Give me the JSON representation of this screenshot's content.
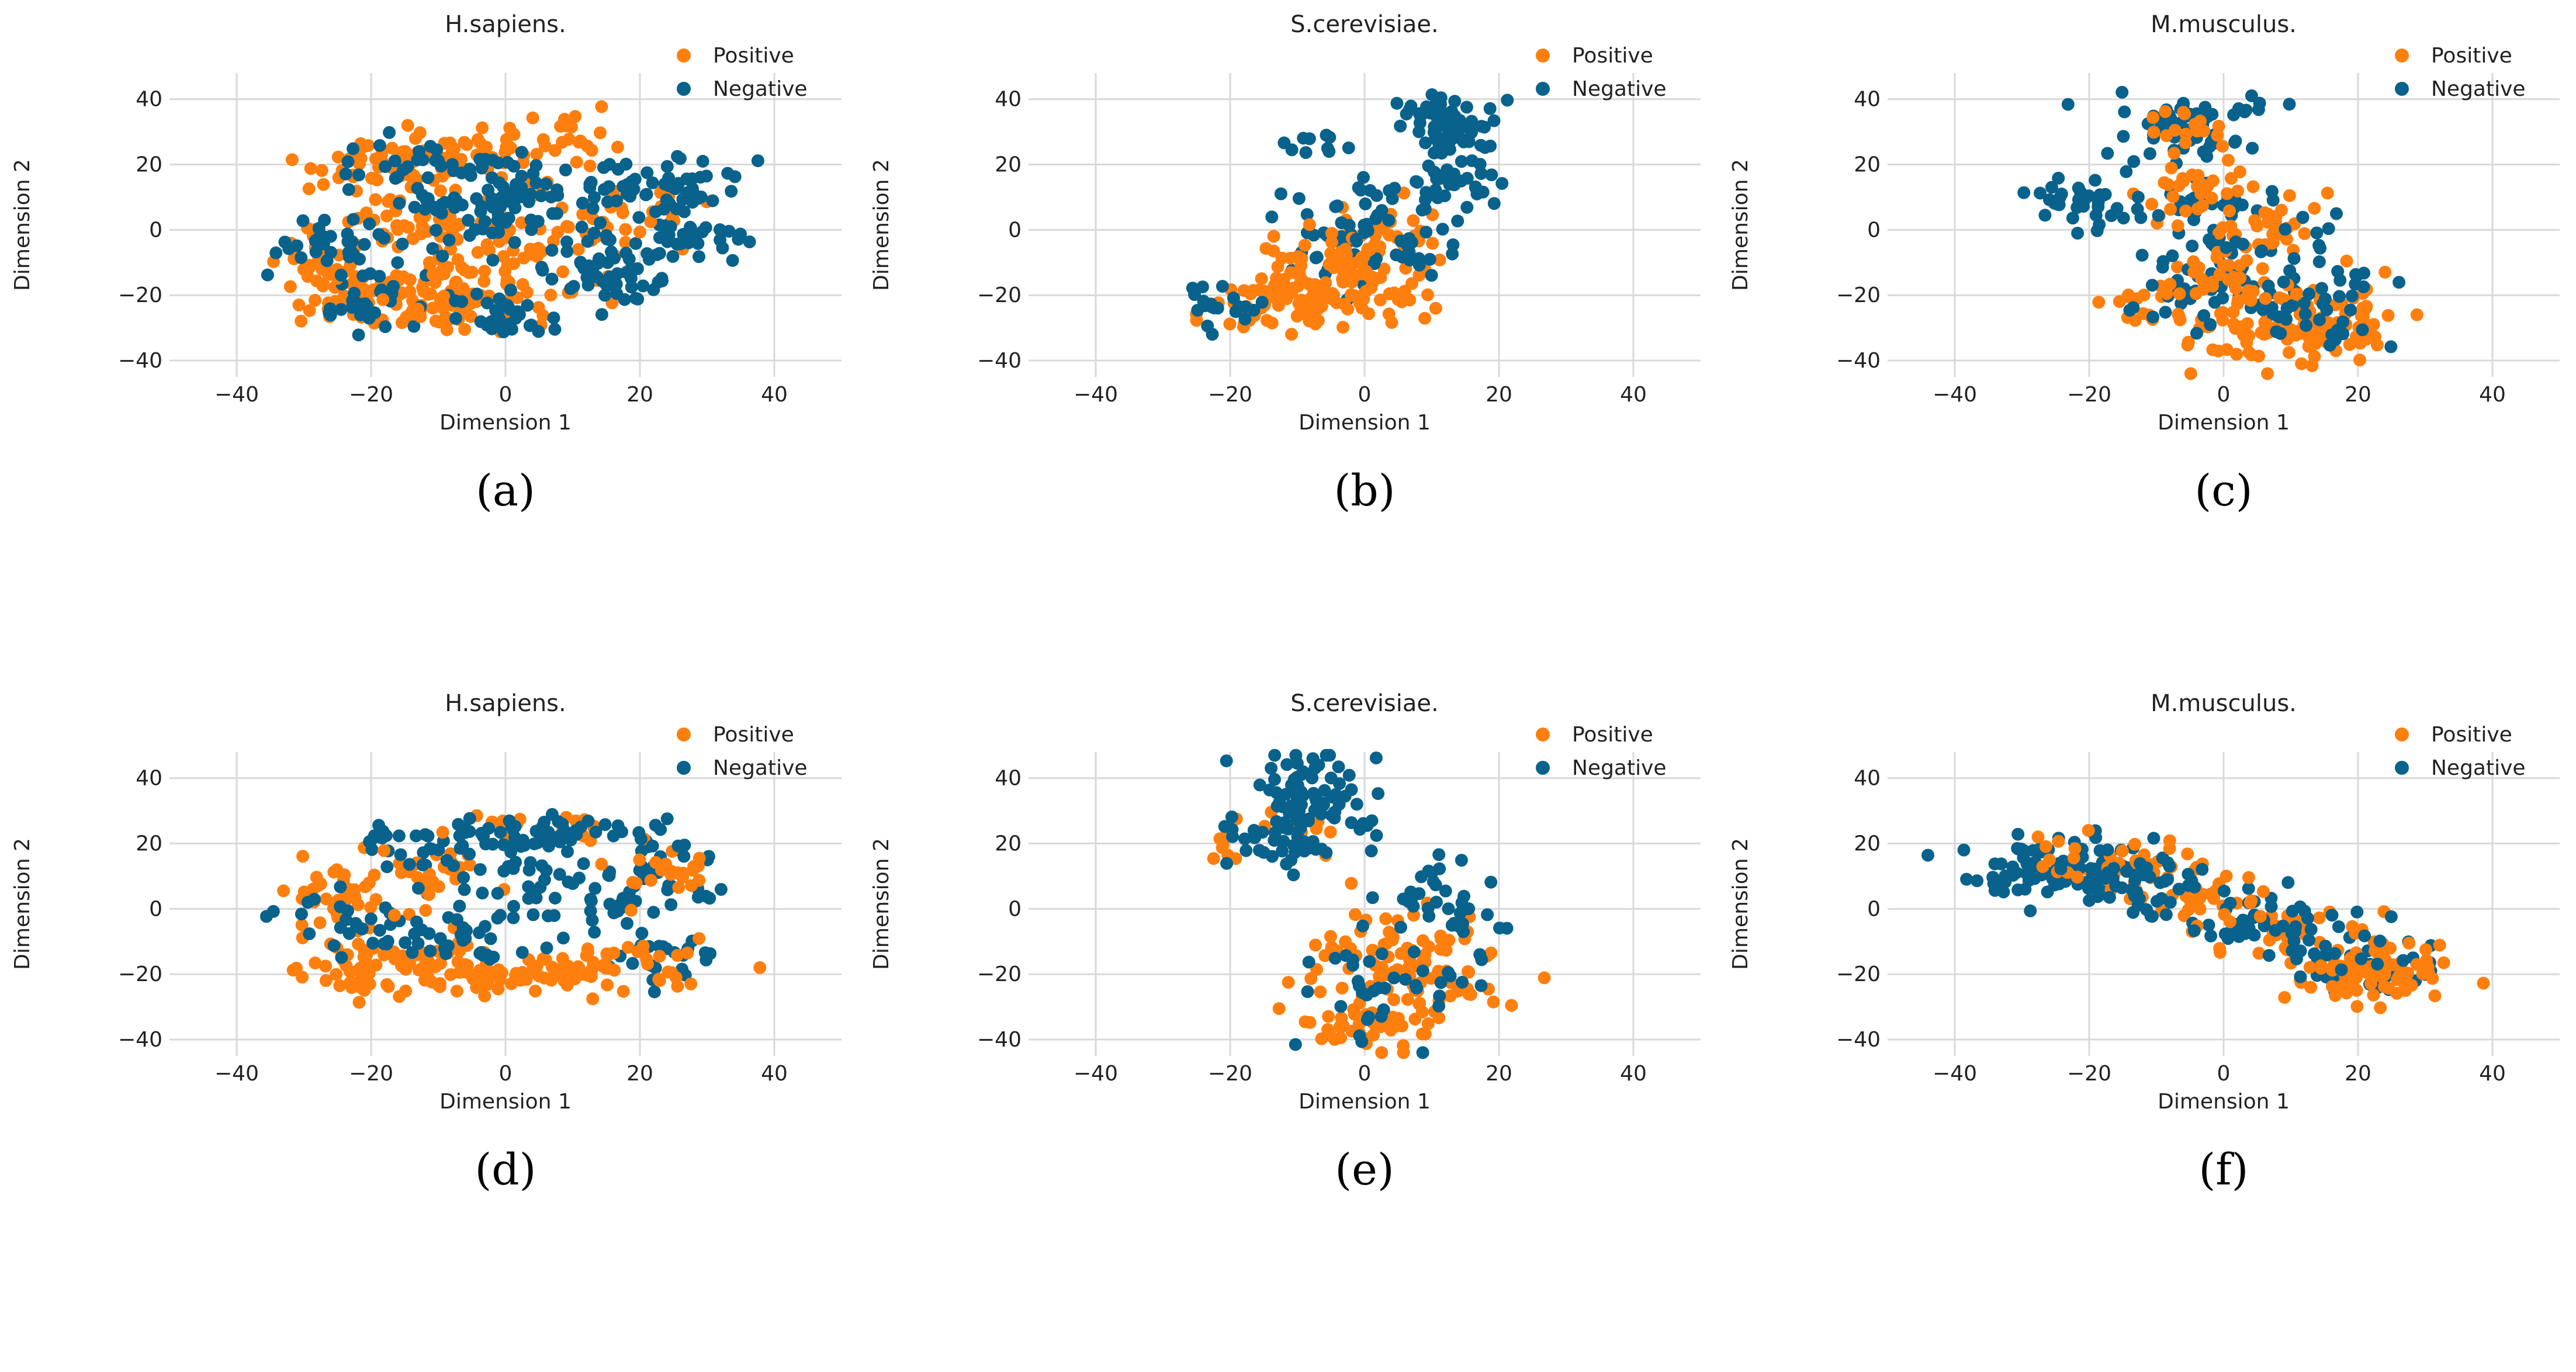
{
  "style": {
    "positive_color": "#ff7f0e",
    "negative_color": "#08628c",
    "grid_color": "#d9d9d9",
    "background": "#ffffff",
    "grid": true,
    "legend_placement": "top-right"
  },
  "legend": {
    "positive": "Positive",
    "negative": "Negative"
  },
  "chart_data": [
    {
      "type": "scatter",
      "panel_label": "(a)",
      "title": "H.sapiens.",
      "xlabel": "Dimension 1",
      "ylabel": "Dimension 2",
      "xlim": [
        -50,
        50
      ],
      "ylim": [
        -45,
        48
      ],
      "xticks": [
        -40,
        -20,
        0,
        20,
        40
      ],
      "yticks": [
        -40,
        -20,
        0,
        20,
        40
      ],
      "xtick_labels": [
        "−40",
        "−20",
        "0",
        "20",
        "40"
      ],
      "ytick_labels": [
        "−40",
        "−20",
        "0",
        "20",
        "40"
      ],
      "series": [
        {
          "name": "Positive",
          "clusters": [
            {
              "cx": -18,
              "cy": 20,
              "sx": 6,
              "sy": 4,
              "n": 60
            },
            {
              "cx": -5,
              "cy": 22,
              "sx": 6,
              "sy": 4,
              "n": 40
            },
            {
              "cx": 10,
              "cy": 28,
              "sx": 4,
              "sy": 4,
              "n": 25
            },
            {
              "cx": -20,
              "cy": -20,
              "sx": 6,
              "sy": 5,
              "n": 70
            },
            {
              "cx": -8,
              "cy": -22,
              "sx": 5,
              "sy": 5,
              "n": 50
            },
            {
              "cx": 2,
              "cy": -10,
              "sx": 8,
              "sy": 8,
              "n": 60
            },
            {
              "cx": -12,
              "cy": 3,
              "sx": 6,
              "sy": 5,
              "n": 40
            },
            {
              "cx": -28,
              "cy": -8,
              "sx": 3,
              "sy": 5,
              "n": 25
            },
            {
              "cx": 15,
              "cy": 5,
              "sx": 6,
              "sy": 5,
              "n": 35
            }
          ]
        },
        {
          "name": "Negative",
          "clusters": [
            {
              "cx": 25,
              "cy": 14,
              "sx": 5,
              "sy": 5,
              "n": 50
            },
            {
              "cx": 15,
              "cy": -12,
              "sx": 6,
              "sy": 6,
              "n": 55
            },
            {
              "cx": 27,
              "cy": -2,
              "sx": 4,
              "sy": 4,
              "n": 30
            },
            {
              "cx": 5,
              "cy": 8,
              "sx": 7,
              "sy": 6,
              "n": 50
            },
            {
              "cx": -5,
              "cy": 5,
              "sx": 6,
              "sy": 6,
              "n": 40
            },
            {
              "cx": -25,
              "cy": -5,
              "sx": 5,
              "sy": 5,
              "n": 35
            },
            {
              "cx": -20,
              "cy": -22,
              "sx": 5,
              "sy": 4,
              "n": 30
            },
            {
              "cx": 0,
              "cy": -25,
              "sx": 4,
              "sy": 4,
              "n": 30
            },
            {
              "cx": -15,
              "cy": 20,
              "sx": 5,
              "sy": 4,
              "n": 20
            },
            {
              "cx": -5,
              "cy": 20,
              "sx": 4,
              "sy": 3,
              "n": 15
            }
          ]
        }
      ]
    },
    {
      "type": "scatter",
      "panel_label": "(b)",
      "title": "S.cerevisiae.",
      "xlabel": "Dimension 1",
      "ylabel": "Dimension 2",
      "xlim": [
        -50,
        50
      ],
      "ylim": [
        -45,
        48
      ],
      "xticks": [
        -40,
        -20,
        0,
        20,
        40
      ],
      "yticks": [
        -40,
        -20,
        0,
        20,
        40
      ],
      "xtick_labels": [
        "−40",
        "−20",
        "0",
        "20",
        "40"
      ],
      "ytick_labels": [
        "−40",
        "−20",
        "0",
        "20",
        "40"
      ],
      "series": [
        {
          "name": "Positive",
          "clusters": [
            {
              "cx": -13,
              "cy": -23,
              "sx": 5,
              "sy": 4,
              "n": 65
            },
            {
              "cx": -3,
              "cy": -15,
              "sx": 4,
              "sy": 5,
              "n": 50
            },
            {
              "cx": 3,
              "cy": -5,
              "sx": 4,
              "sy": 6,
              "n": 45
            },
            {
              "cx": -8,
              "cy": -10,
              "sx": 4,
              "sy": 5,
              "n": 25
            },
            {
              "cx": 6,
              "cy": -20,
              "sx": 3,
              "sy": 3,
              "n": 15
            }
          ]
        },
        {
          "name": "Negative",
          "clusters": [
            {
              "cx": 12,
              "cy": 32,
              "sx": 4,
              "sy": 5,
              "n": 55
            },
            {
              "cx": 14,
              "cy": 18,
              "sx": 4,
              "sy": 6,
              "n": 40
            },
            {
              "cx": -7,
              "cy": 27,
              "sx": 2,
              "sy": 2,
              "n": 10
            },
            {
              "cx": -20,
              "cy": -23,
              "sx": 3,
              "sy": 3,
              "n": 20
            },
            {
              "cx": 0,
              "cy": 5,
              "sx": 6,
              "sy": 6,
              "n": 40
            },
            {
              "cx": -5,
              "cy": -15,
              "sx": 5,
              "sy": 5,
              "n": 20
            },
            {
              "cx": 8,
              "cy": -8,
              "sx": 3,
              "sy": 4,
              "n": 15
            }
          ]
        }
      ]
    },
    {
      "type": "scatter",
      "panel_label": "(c)",
      "title": "M.musculus.",
      "xlabel": "Dimension 1",
      "ylabel": "Dimension 2",
      "xlim": [
        -50,
        50
      ],
      "ylim": [
        -45,
        48
      ],
      "xticks": [
        -40,
        -20,
        0,
        20,
        40
      ],
      "yticks": [
        -40,
        -20,
        0,
        20,
        40
      ],
      "xtick_labels": [
        "−40",
        "−20",
        "0",
        "20",
        "40"
      ],
      "ytick_labels": [
        "−40",
        "−20",
        "0",
        "20",
        "40"
      ],
      "series": [
        {
          "name": "Positive",
          "clusters": [
            {
              "cx": 10,
              "cy": -32,
              "sx": 7,
              "sy": 5,
              "n": 75
            },
            {
              "cx": 18,
              "cy": -25,
              "sx": 5,
              "sy": 6,
              "n": 35
            },
            {
              "cx": 3,
              "cy": -15,
              "sx": 6,
              "sy": 6,
              "n": 40
            },
            {
              "cx": 5,
              "cy": 0,
              "sx": 6,
              "sy": 7,
              "n": 40
            },
            {
              "cx": -12,
              "cy": -22,
              "sx": 4,
              "sy": 6,
              "n": 15
            },
            {
              "cx": -5,
              "cy": 15,
              "sx": 5,
              "sy": 6,
              "n": 25
            },
            {
              "cx": -5,
              "cy": 30,
              "sx": 4,
              "sy": 4,
              "n": 15
            }
          ]
        },
        {
          "name": "Negative",
          "clusters": [
            {
              "cx": -5,
              "cy": 30,
              "sx": 6,
              "sy": 6,
              "n": 60
            },
            {
              "cx": -22,
              "cy": 8,
              "sx": 4,
              "sy": 4,
              "n": 35
            },
            {
              "cx": -3,
              "cy": 10,
              "sx": 5,
              "sy": 6,
              "n": 35
            },
            {
              "cx": 0,
              "cy": -10,
              "sx": 5,
              "sy": 6,
              "n": 35
            },
            {
              "cx": 14,
              "cy": -15,
              "sx": 5,
              "sy": 8,
              "n": 30
            },
            {
              "cx": 5,
              "cy": -25,
              "sx": 5,
              "sy": 5,
              "n": 20
            },
            {
              "cx": -8,
              "cy": -20,
              "sx": 4,
              "sy": 5,
              "n": 15
            },
            {
              "cx": 20,
              "cy": -30,
              "sx": 3,
              "sy": 4,
              "n": 10
            }
          ]
        }
      ]
    },
    {
      "type": "scatter",
      "panel_label": "(d)",
      "title": "H.sapiens.",
      "xlabel": "Dimension 1",
      "ylabel": "Dimension 2",
      "xlim": [
        -50,
        50
      ],
      "ylim": [
        -45,
        48
      ],
      "xticks": [
        -40,
        -20,
        0,
        20,
        40
      ],
      "yticks": [
        -40,
        -20,
        0,
        20,
        40
      ],
      "xtick_labels": [
        "−40",
        "−20",
        "0",
        "20",
        "40"
      ],
      "ytick_labels": [
        "−40",
        "−20",
        "0",
        "20",
        "40"
      ],
      "series": [
        {
          "name": "Positive",
          "clusters": [
            {
              "cx": -18,
              "cy": -18,
              "sx": 7,
              "sy": 4,
              "n": 70
            },
            {
              "cx": 0,
              "cy": -20,
              "sx": 6,
              "sy": 3,
              "n": 55
            },
            {
              "cx": 15,
              "cy": -17,
              "sx": 7,
              "sy": 4,
              "n": 50
            },
            {
              "cx": -25,
              "cy": 2,
              "sx": 4,
              "sy": 8,
              "n": 40
            },
            {
              "cx": -10,
              "cy": 10,
              "sx": 5,
              "sy": 7,
              "n": 30
            },
            {
              "cx": 25,
              "cy": 12,
              "sx": 4,
              "sy": 4,
              "n": 25
            },
            {
              "cx": 5,
              "cy": 25,
              "sx": 6,
              "sy": 2,
              "n": 15
            }
          ]
        },
        {
          "name": "Negative",
          "clusters": [
            {
              "cx": 5,
              "cy": 22,
              "sx": 10,
              "sy": 3,
              "n": 70
            },
            {
              "cx": 5,
              "cy": 5,
              "sx": 9,
              "sy": 6,
              "n": 55
            },
            {
              "cx": 22,
              "cy": 10,
              "sx": 5,
              "sy": 6,
              "n": 30
            },
            {
              "cx": 24,
              "cy": -15,
              "sx": 4,
              "sy": 4,
              "n": 25
            },
            {
              "cx": -20,
              "cy": -5,
              "sx": 6,
              "sy": 5,
              "n": 35
            },
            {
              "cx": -5,
              "cy": -10,
              "sx": 5,
              "sy": 5,
              "n": 25
            },
            {
              "cx": -18,
              "cy": 20,
              "sx": 5,
              "sy": 3,
              "n": 15
            }
          ]
        }
      ]
    },
    {
      "type": "scatter",
      "panel_label": "(e)",
      "title": "S.cerevisiae.",
      "xlabel": "Dimension 1",
      "ylabel": "Dimension 2",
      "xlim": [
        -50,
        50
      ],
      "ylim": [
        -45,
        48
      ],
      "xticks": [
        -40,
        -20,
        0,
        20,
        40
      ],
      "yticks": [
        -40,
        -20,
        0,
        20,
        40
      ],
      "xtick_labels": [
        "−40",
        "−20",
        "0",
        "20",
        "40"
      ],
      "ytick_labels": [
        "−40",
        "−20",
        "0",
        "20",
        "40"
      ],
      "series": [
        {
          "name": "Positive",
          "clusters": [
            {
              "cx": 5,
              "cy": -20,
              "sx": 7,
              "sy": 10,
              "n": 110
            },
            {
              "cx": 0,
              "cy": -35,
              "sx": 5,
              "sy": 3,
              "n": 25
            },
            {
              "cx": -20,
              "cy": 20,
              "sx": 2,
              "sy": 3,
              "n": 8
            },
            {
              "cx": -8,
              "cy": 22,
              "sx": 4,
              "sy": 6,
              "n": 10
            }
          ]
        },
        {
          "name": "Negative",
          "clusters": [
            {
              "cx": -8,
              "cy": 35,
              "sx": 5,
              "sy": 7,
              "n": 80
            },
            {
              "cx": -12,
              "cy": 20,
              "sx": 4,
              "sy": 5,
              "n": 30
            },
            {
              "cx": 10,
              "cy": 5,
              "sx": 4,
              "sy": 5,
              "n": 25
            },
            {
              "cx": 3,
              "cy": -20,
              "sx": 7,
              "sy": 9,
              "n": 40
            },
            {
              "cx": 15,
              "cy": -5,
              "sx": 3,
              "sy": 4,
              "n": 10
            }
          ]
        }
      ]
    },
    {
      "type": "scatter",
      "panel_label": "(f)",
      "title": "M.musculus.",
      "xlabel": "Dimension 1",
      "ylabel": "Dimension 2",
      "xlim": [
        -50,
        50
      ],
      "ylim": [
        -45,
        48
      ],
      "xticks": [
        -40,
        -20,
        0,
        20,
        40
      ],
      "yticks": [
        -40,
        -20,
        0,
        20,
        40
      ],
      "xtick_labels": [
        "−40",
        "−20",
        "0",
        "20",
        "40"
      ],
      "ytick_labels": [
        "−40",
        "−20",
        "0",
        "20",
        "40"
      ],
      "series": [
        {
          "name": "Positive",
          "clusters": [
            {
              "cx": 22,
              "cy": -18,
              "sx": 6,
              "sy": 5,
              "n": 90
            },
            {
              "cx": 10,
              "cy": -5,
              "sx": 6,
              "sy": 5,
              "n": 30
            },
            {
              "cx": -15,
              "cy": 15,
              "sx": 6,
              "sy": 4,
              "n": 35
            },
            {
              "cx": -5,
              "cy": 5,
              "sx": 5,
              "sy": 4,
              "n": 20
            },
            {
              "cx": 0,
              "cy": 2,
              "sx": 5,
              "sy": 4,
              "n": 15
            }
          ]
        },
        {
          "name": "Negative",
          "clusters": [
            {
              "cx": -25,
              "cy": 13,
              "sx": 7,
              "sy": 5,
              "n": 80
            },
            {
              "cx": -10,
              "cy": 8,
              "sx": 6,
              "sy": 6,
              "n": 45
            },
            {
              "cx": 5,
              "cy": -3,
              "sx": 6,
              "sy": 5,
              "n": 35
            },
            {
              "cx": 15,
              "cy": -10,
              "sx": 5,
              "sy": 5,
              "n": 25
            },
            {
              "cx": 23,
              "cy": -18,
              "sx": 5,
              "sy": 5,
              "n": 30
            },
            {
              "cx": -33,
              "cy": 8,
              "sx": 2,
              "sy": 2,
              "n": 10
            }
          ]
        }
      ]
    }
  ]
}
